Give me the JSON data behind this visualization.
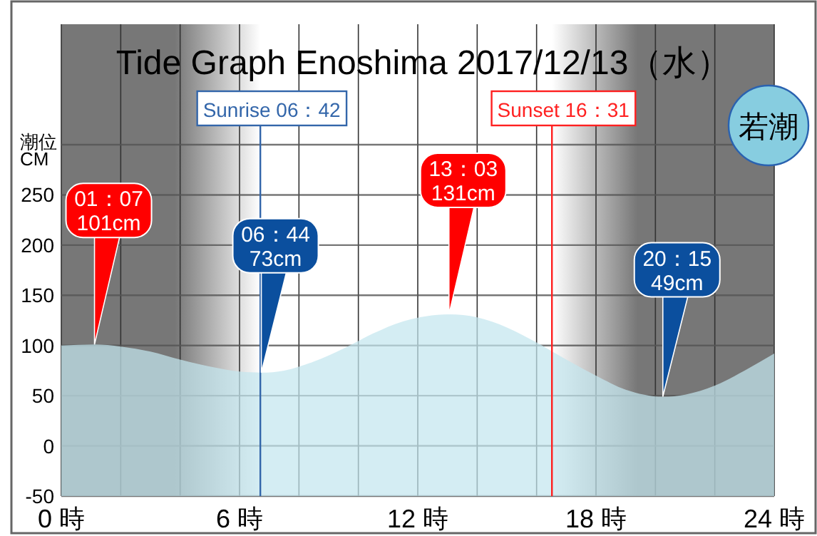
{
  "chart_data": {
    "type": "area",
    "title": "Tide Graph Enoshima 2017/12/13（水）",
    "ylabel": "潮位\nCM",
    "x": [
      0,
      1.117,
      2,
      3,
      4,
      5,
      6,
      6.733,
      7.5,
      8.5,
      9.5,
      10.5,
      11.5,
      13.05,
      14,
      15,
      16,
      17,
      18,
      19,
      20.25,
      21,
      22,
      23,
      24
    ],
    "series": [
      {
        "color": "#c4e6ef",
        "values": [
          100,
          101,
          99,
          94,
          86,
          79,
          74,
          73,
          75,
          84,
          97,
          112,
          124,
          131,
          128,
          118,
          103,
          86,
          70,
          56,
          49,
          51,
          60,
          75,
          92
        ]
      }
    ],
    "xlim": [
      0,
      24
    ],
    "xticks": [
      {
        "value": 0,
        "label": "0 時"
      },
      {
        "value": 2,
        "label": null
      },
      {
        "value": 4,
        "label": null
      },
      {
        "value": 6,
        "label": "6 時"
      },
      {
        "value": 8,
        "label": null
      },
      {
        "value": 10,
        "label": null
      },
      {
        "value": 12,
        "label": "12 時"
      },
      {
        "value": 14,
        "label": null
      },
      {
        "value": 16,
        "label": null
      },
      {
        "value": 18,
        "label": "18 時"
      },
      {
        "value": 20,
        "label": null
      },
      {
        "value": 22,
        "label": null
      },
      {
        "value": 24,
        "label": "24 時"
      }
    ],
    "ylim": [
      -50,
      420
    ],
    "yticks": [
      -50,
      0,
      50,
      100,
      150,
      200,
      250,
      {
        "value": 300,
        "label": null
      }
    ],
    "grid": true,
    "bands": [
      {
        "axis": "x",
        "from": 0,
        "to": 6.7,
        "color": "#777777"
      },
      {
        "axis": "x",
        "from": 16.517,
        "to": 24,
        "color": "#777777"
      }
    ],
    "ref_lines": [
      {
        "axis": "x",
        "value": 6.7,
        "label": "Sunrise  06：42",
        "color": "#3366aa"
      },
      {
        "axis": "x",
        "value": 16.517,
        "label": "Sunset  16：31",
        "color": "#ff2020"
      }
    ],
    "annotations": [
      {
        "text": "01：07\n101cm",
        "x": 1.117,
        "y": 101
      },
      {
        "text": "06：44\n73cm",
        "x": 6.733,
        "y": 73
      },
      {
        "text": "13：03\n131cm",
        "x": 13.05,
        "y": 131
      },
      {
        "text": "20：15\n49cm",
        "x": 20.25,
        "y": 49
      },
      "若潮"
    ]
  }
}
